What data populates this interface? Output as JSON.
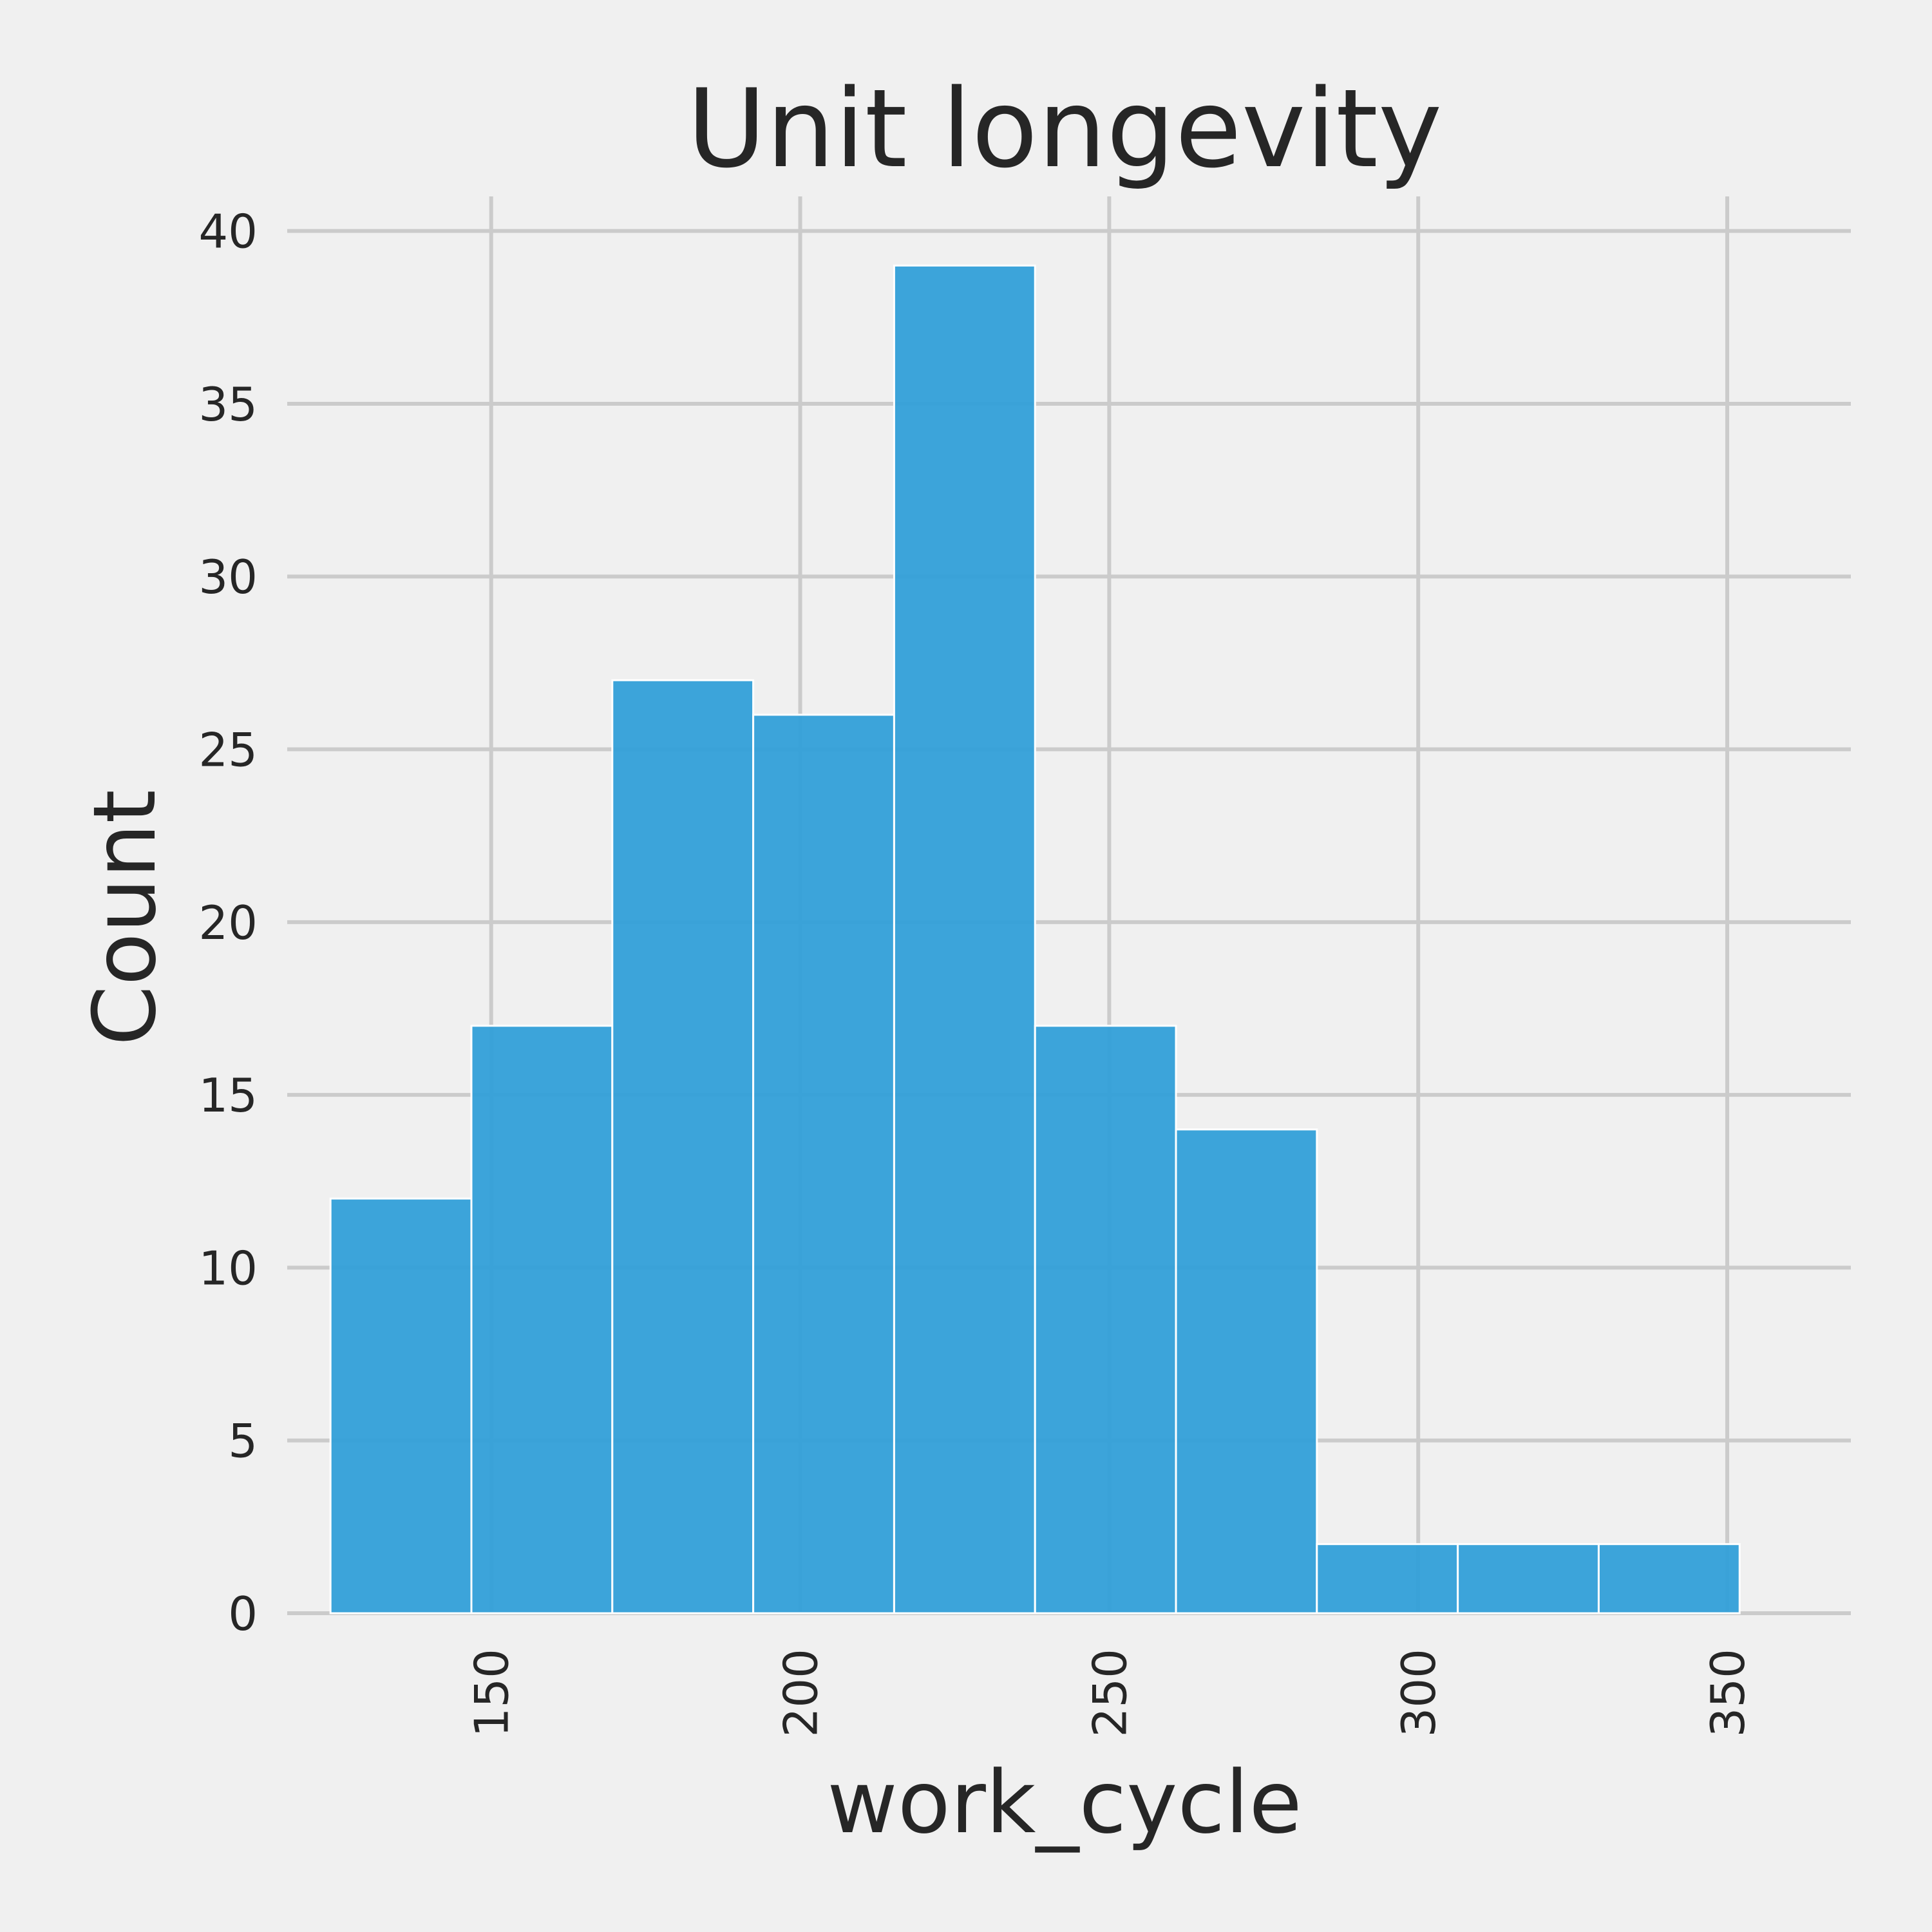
{
  "chart_data": {
    "type": "bar",
    "title": "Unit longevity",
    "xlabel": "work_cycle",
    "ylabel": "Count",
    "bins": [
      {
        "start": 124.0,
        "end": 146.8,
        "count": 12
      },
      {
        "start": 146.8,
        "end": 169.6,
        "count": 17
      },
      {
        "start": 169.6,
        "end": 192.4,
        "count": 27
      },
      {
        "start": 192.4,
        "end": 215.2,
        "count": 26
      },
      {
        "start": 215.2,
        "end": 238.0,
        "count": 39
      },
      {
        "start": 238.0,
        "end": 260.8,
        "count": 17
      },
      {
        "start": 260.8,
        "end": 283.6,
        "count": 14
      },
      {
        "start": 283.6,
        "end": 306.4,
        "count": 2
      },
      {
        "start": 306.4,
        "end": 329.2,
        "count": 2
      },
      {
        "start": 329.2,
        "end": 352.0,
        "count": 2
      }
    ],
    "xlim": [
      117,
      370
    ],
    "ylim": [
      0,
      41
    ],
    "x_ticks": [
      150,
      200,
      250,
      300,
      350
    ],
    "y_ticks": [
      0,
      5,
      10,
      15,
      20,
      25,
      30,
      35,
      40
    ],
    "bar_color": "#2e9ed8",
    "background": "#f0f0f0",
    "grid": true
  }
}
